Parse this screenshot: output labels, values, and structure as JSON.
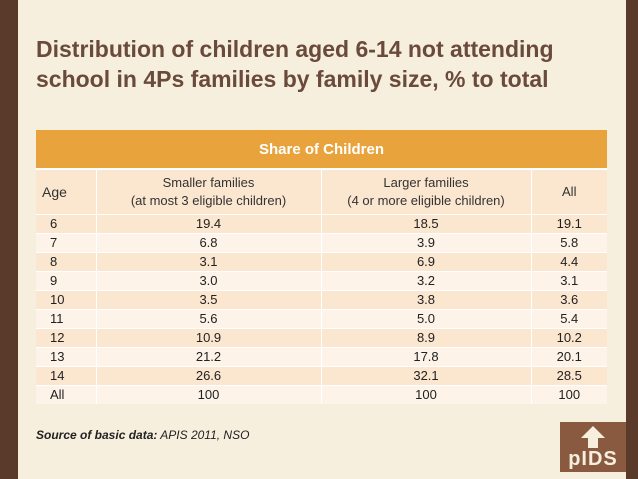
{
  "slide": {
    "title_line1": "Distribution of children aged 6-14 not attending",
    "title_line2": "school in 4Ps families by family size, % to total",
    "source_label": "Source of basic data:",
    "source_value": " APIS 2011, NSO",
    "logo_text": "pIDS"
  },
  "colors": {
    "header_orange": "#e8a33c",
    "title_brown": "#6a4a3a",
    "frame_brown": "#5a3a2a",
    "band_light": "#fbe6cf"
  },
  "chart_data": {
    "type": "table",
    "title": "Share of Children",
    "columns": [
      {
        "line1": "Age",
        "line2": ""
      },
      {
        "line1": "Smaller families",
        "line2": "(at most 3 eligible children)"
      },
      {
        "line1": "Larger families",
        "line2": "(4 or more eligible children)"
      },
      {
        "line1": "All",
        "line2": ""
      }
    ],
    "rows": [
      [
        "6",
        "19.4",
        "18.5",
        "19.1"
      ],
      [
        "7",
        "6.8",
        "3.9",
        "5.8"
      ],
      [
        "8",
        "3.1",
        "6.9",
        "4.4"
      ],
      [
        "9",
        "3.0",
        "3.2",
        "3.1"
      ],
      [
        "10",
        "3.5",
        "3.8",
        "3.6"
      ],
      [
        "11",
        "5.6",
        "5.0",
        "5.4"
      ],
      [
        "12",
        "10.9",
        "8.9",
        "10.2"
      ],
      [
        "13",
        "21.2",
        "17.8",
        "20.1"
      ],
      [
        "14",
        "26.6",
        "32.1",
        "28.5"
      ],
      [
        "All",
        "100",
        "100",
        "100"
      ]
    ]
  }
}
